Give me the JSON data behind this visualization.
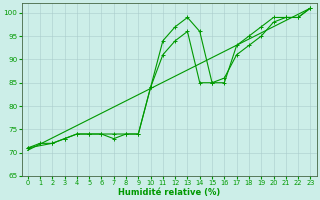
{
  "xlabel": "Humidité relative (%)",
  "xlim": [
    -0.5,
    23.5
  ],
  "ylim": [
    65,
    102
  ],
  "yticks": [
    65,
    70,
    75,
    80,
    85,
    90,
    95,
    100
  ],
  "xticks": [
    0,
    1,
    2,
    3,
    4,
    5,
    6,
    7,
    8,
    9,
    10,
    11,
    12,
    13,
    14,
    15,
    16,
    17,
    18,
    19,
    20,
    21,
    22,
    23
  ],
  "bg_color": "#cceee8",
  "grid_color": "#aacccc",
  "line_color": "#009900",
  "series1_x": [
    0,
    1,
    2,
    3,
    4,
    5,
    6,
    7,
    8,
    9,
    10,
    11,
    12,
    13,
    14,
    15,
    16,
    17,
    18,
    19,
    20,
    21,
    22,
    23
  ],
  "series1_y": [
    71,
    72,
    72,
    73,
    74,
    74,
    74,
    73,
    74,
    74,
    84,
    94,
    97,
    99,
    96,
    85,
    85,
    93,
    95,
    97,
    99,
    99,
    99,
    101
  ],
  "series2_x": [
    0,
    2,
    3,
    4,
    5,
    6,
    7,
    8,
    9,
    10,
    11,
    12,
    13,
    14,
    15,
    16,
    17,
    18,
    19,
    20,
    21,
    22,
    23
  ],
  "series2_y": [
    71,
    72,
    73,
    74,
    74,
    74,
    74,
    74,
    74,
    84,
    91,
    94,
    96,
    85,
    85,
    86,
    91,
    93,
    95,
    98,
    99,
    99,
    101
  ],
  "trend_x": [
    0,
    23
  ],
  "trend_y": [
    70.5,
    101
  ]
}
